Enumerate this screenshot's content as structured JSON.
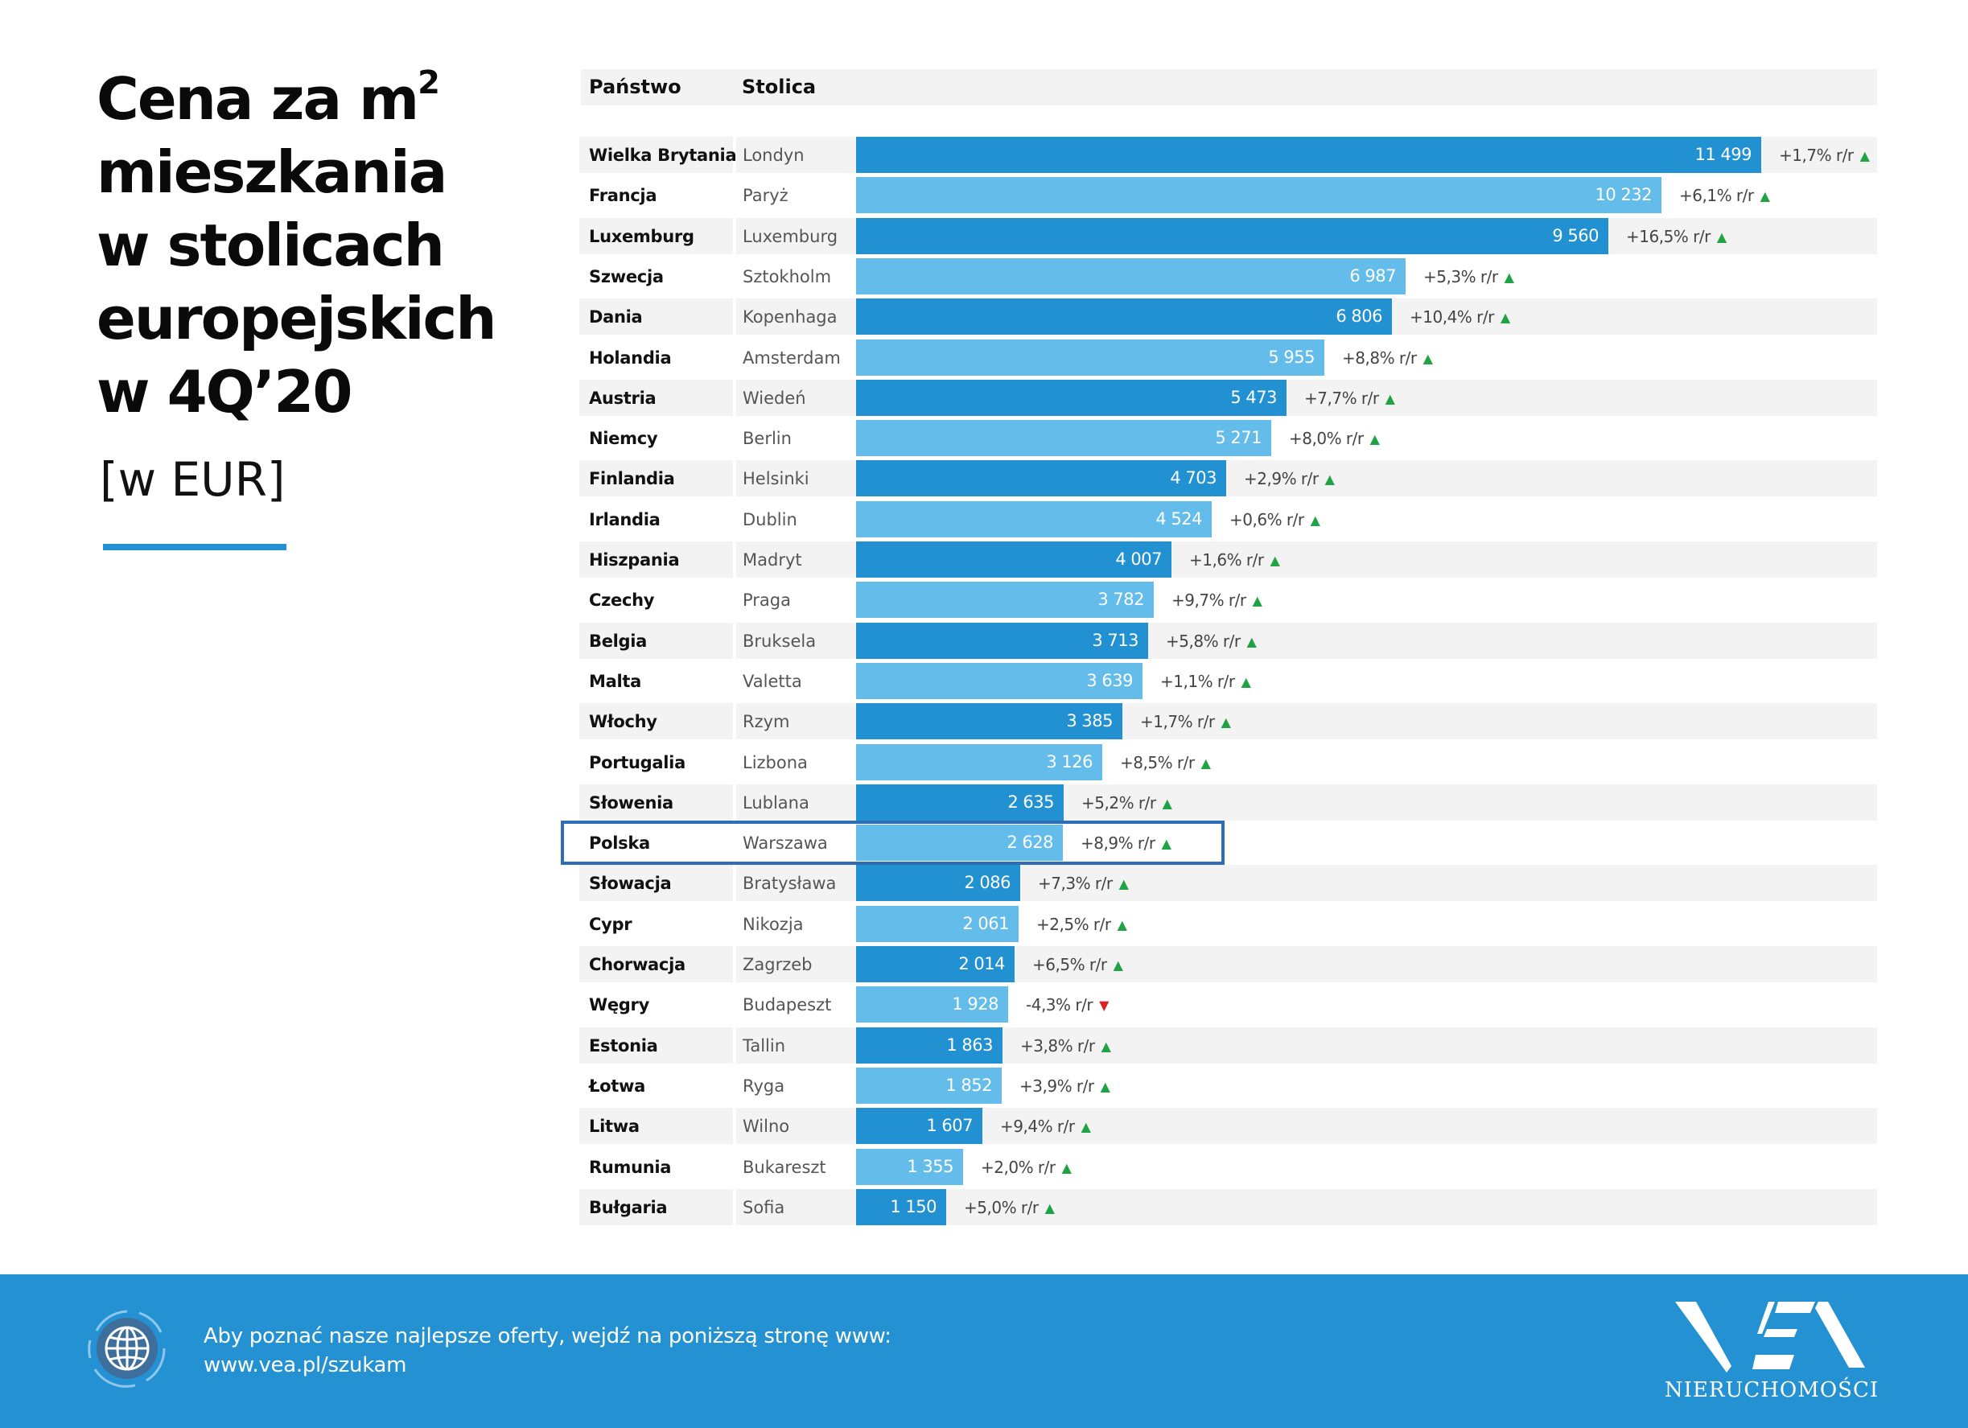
{
  "title": {
    "lines": [
      "Cena za m",
      "mieszkania",
      "w stolicach",
      "europejskich",
      "w 4Q’20"
    ],
    "superscript": "2",
    "unit": "[w EUR]"
  },
  "table": {
    "headers": {
      "country": "Państwo",
      "capital": "Stolica"
    },
    "highlighted_country": "Polska"
  },
  "colors": {
    "bar_dark": "#2291d2",
    "bar_light": "#63bcea",
    "up": "#1fa345",
    "down": "#e02020",
    "highlight": "#2e6db5",
    "footer": "#2391d2"
  },
  "chart_data": {
    "type": "bar",
    "orientation": "horizontal",
    "title": "Cena za m² mieszkania w stolicach europejskich w 4Q’20",
    "unit": "EUR",
    "xlabel": "",
    "ylabel": "",
    "xlim": [
      0,
      11499
    ],
    "grid": false,
    "legend": "none",
    "categories": [
      "Wielka Brytania",
      "Francja",
      "Luxemburg",
      "Szwecja",
      "Dania",
      "Holandia",
      "Austria",
      "Niemcy",
      "Finlandia",
      "Irlandia",
      "Hiszpania",
      "Czechy",
      "Belgia",
      "Malta",
      "Włochy",
      "Portugalia",
      "Słowenia",
      "Polska",
      "Słowacja",
      "Cypr",
      "Chorwacja",
      "Węgry",
      "Estonia",
      "Łotwa",
      "Litwa",
      "Rumunia",
      "Bułgaria"
    ],
    "rows": [
      {
        "country": "Wielka Brytania",
        "capital": "Londyn",
        "value": 11499,
        "label": "11 499",
        "change": "+1,7% r/r",
        "trend": "up"
      },
      {
        "country": "Francja",
        "capital": "Paryż",
        "value": 10232,
        "label": "10 232",
        "change": "+6,1% r/r",
        "trend": "up"
      },
      {
        "country": "Luxemburg",
        "capital": "Luxemburg",
        "value": 9560,
        "label": "9 560",
        "change": "+16,5% r/r",
        "trend": "up"
      },
      {
        "country": "Szwecja",
        "capital": "Sztokholm",
        "value": 6987,
        "label": "6 987",
        "change": "+5,3% r/r",
        "trend": "up"
      },
      {
        "country": "Dania",
        "capital": "Kopenhaga",
        "value": 6806,
        "label": "6 806",
        "change": "+10,4% r/r",
        "trend": "up"
      },
      {
        "country": "Holandia",
        "capital": "Amsterdam",
        "value": 5955,
        "label": "5 955",
        "change": "+8,8% r/r",
        "trend": "up"
      },
      {
        "country": "Austria",
        "capital": "Wiedeń",
        "value": 5473,
        "label": "5 473",
        "change": "+7,7% r/r",
        "trend": "up"
      },
      {
        "country": "Niemcy",
        "capital": "Berlin",
        "value": 5271,
        "label": "5 271",
        "change": "+8,0% r/r",
        "trend": "up"
      },
      {
        "country": "Finlandia",
        "capital": "Helsinki",
        "value": 4703,
        "label": "4 703",
        "change": "+2,9% r/r",
        "trend": "up"
      },
      {
        "country": "Irlandia",
        "capital": "Dublin",
        "value": 4524,
        "label": "4 524",
        "change": "+0,6% r/r",
        "trend": "up"
      },
      {
        "country": "Hiszpania",
        "capital": "Madryt",
        "value": 4007,
        "label": "4 007",
        "change": "+1,6% r/r",
        "trend": "up"
      },
      {
        "country": "Czechy",
        "capital": "Praga",
        "value": 3782,
        "label": "3 782",
        "change": "+9,7% r/r",
        "trend": "up"
      },
      {
        "country": "Belgia",
        "capital": "Bruksela",
        "value": 3713,
        "label": "3 713",
        "change": "+5,8% r/r",
        "trend": "up"
      },
      {
        "country": "Malta",
        "capital": "Valetta",
        "value": 3639,
        "label": "3 639",
        "change": "+1,1% r/r",
        "trend": "up"
      },
      {
        "country": "Włochy",
        "capital": "Rzym",
        "value": 3385,
        "label": "3 385",
        "change": "+1,7% r/r",
        "trend": "up"
      },
      {
        "country": "Portugalia",
        "capital": "Lizbona",
        "value": 3126,
        "label": "3 126",
        "change": "+8,5% r/r",
        "trend": "up"
      },
      {
        "country": "Słowenia",
        "capital": "Lublana",
        "value": 2635,
        "label": "2 635",
        "change": "+5,2% r/r",
        "trend": "up"
      },
      {
        "country": "Polska",
        "capital": "Warszawa",
        "value": 2628,
        "label": "2 628",
        "change": "+8,9% r/r",
        "trend": "up"
      },
      {
        "country": "Słowacja",
        "capital": "Bratysława",
        "value": 2086,
        "label": "2 086",
        "change": "+7,3% r/r",
        "trend": "up"
      },
      {
        "country": "Cypr",
        "capital": "Nikozja",
        "value": 2061,
        "label": "2 061",
        "change": "+2,5% r/r",
        "trend": "up"
      },
      {
        "country": "Chorwacja",
        "capital": "Zagrzeb",
        "value": 2014,
        "label": "2 014",
        "change": "+6,5% r/r",
        "trend": "up"
      },
      {
        "country": "Węgry",
        "capital": "Budapeszt",
        "value": 1928,
        "label": "1 928",
        "change": "-4,3% r/r",
        "trend": "down"
      },
      {
        "country": "Estonia",
        "capital": "Tallin",
        "value": 1863,
        "label": "1 863",
        "change": "+3,8% r/r",
        "trend": "up"
      },
      {
        "country": "Łotwa",
        "capital": "Ryga",
        "value": 1852,
        "label": "1 852",
        "change": "+3,9% r/r",
        "trend": "up"
      },
      {
        "country": "Litwa",
        "capital": "Wilno",
        "value": 1607,
        "label": "1 607",
        "change": "+9,4% r/r",
        "trend": "up"
      },
      {
        "country": "Rumunia",
        "capital": "Bukareszt",
        "value": 1355,
        "label": "1 355",
        "change": "+2,0% r/r",
        "trend": "up"
      },
      {
        "country": "Bułgaria",
        "capital": "Sofia",
        "value": 1150,
        "label": "1 150",
        "change": "+5,0% r/r",
        "trend": "up"
      }
    ]
  },
  "footer": {
    "icon": "globe-icon",
    "line1": "Aby poznać nasze najlepsze oferty, wejdź na poniższą stronę www:",
    "line2": "www.vea.pl/szukam",
    "logo_text": "VEA",
    "logo_subtitle": "NIERUCHOMOŚCI"
  }
}
